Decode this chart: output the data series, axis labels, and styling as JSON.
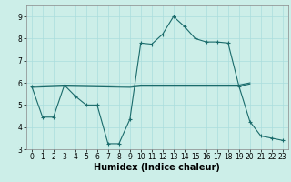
{
  "xlabel": "Humidex (Indice chaleur)",
  "bg_color": "#cceee8",
  "line_color": "#1a6b6b",
  "xlim": [
    -0.5,
    23.5
  ],
  "ylim": [
    3,
    9.5
  ],
  "xticks": [
    0,
    1,
    2,
    3,
    4,
    5,
    6,
    7,
    8,
    9,
    10,
    11,
    12,
    13,
    14,
    15,
    16,
    17,
    18,
    19,
    20,
    21,
    22,
    23
  ],
  "yticks": [
    3,
    4,
    5,
    6,
    7,
    8,
    9
  ],
  "line1_x": [
    0,
    1,
    2,
    3,
    4,
    5,
    6,
    7,
    8,
    9,
    10,
    11,
    12,
    13,
    14,
    15,
    16,
    17,
    18,
    19,
    20,
    21,
    22,
    23
  ],
  "line1_y": [
    5.85,
    4.45,
    4.45,
    5.9,
    5.4,
    5.0,
    5.0,
    3.25,
    3.25,
    4.35,
    7.8,
    7.75,
    8.2,
    9.0,
    8.55,
    8.0,
    7.85,
    7.85,
    7.8,
    5.85,
    4.25,
    3.6,
    3.5,
    3.4
  ],
  "line2_x": [
    0,
    3,
    9,
    10,
    11,
    12,
    13,
    14,
    15,
    16,
    17,
    18,
    19,
    20
  ],
  "line2_y": [
    5.85,
    5.9,
    5.85,
    5.9,
    5.9,
    5.9,
    5.9,
    5.9,
    5.9,
    5.9,
    5.9,
    5.9,
    5.9,
    6.0
  ],
  "line3_x": [
    0,
    3,
    9,
    10,
    11,
    12,
    13,
    14,
    15,
    16,
    17,
    18,
    19,
    20
  ],
  "line3_y": [
    5.8,
    5.85,
    5.8,
    5.85,
    5.85,
    5.85,
    5.85,
    5.85,
    5.85,
    5.85,
    5.85,
    5.85,
    5.85,
    5.95
  ],
  "grid_color": "#aadddd",
  "tick_fontsize": 5.5,
  "label_fontsize": 7,
  "spine_color": "#888888"
}
